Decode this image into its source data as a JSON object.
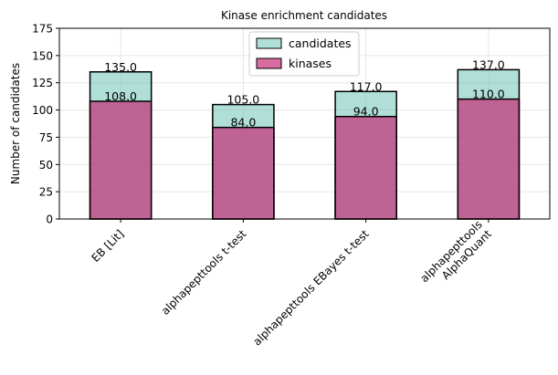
{
  "chart_data": {
    "type": "bar",
    "stacking": "overlay",
    "title": "Kinase enrichment candidates",
    "xlabel": "",
    "ylabel": "Number of candidates",
    "ylim": [
      0,
      175
    ],
    "yticks": [
      0,
      25,
      50,
      75,
      100,
      125,
      150,
      175
    ],
    "grid": true,
    "legend_position": "top-center",
    "categories": [
      "EB [Lit]",
      "alphapepttools t-test",
      "alphapepttools EBayes t-test",
      "alphapepttools\nAlphaQuant"
    ],
    "series": [
      {
        "name": "candidates",
        "color": "#5fbfae",
        "fill_alpha": 0.5,
        "values": [
          135,
          105,
          117,
          137
        ],
        "labels": [
          "135.0",
          "105.0",
          "117.0",
          "137.0"
        ]
      },
      {
        "name": "kinases",
        "color": "#c52d77",
        "fill_alpha": 0.7,
        "values": [
          108,
          84,
          94,
          110
        ],
        "labels": [
          "108.0",
          "84.0",
          "94.0",
          "110.0"
        ]
      }
    ]
  }
}
